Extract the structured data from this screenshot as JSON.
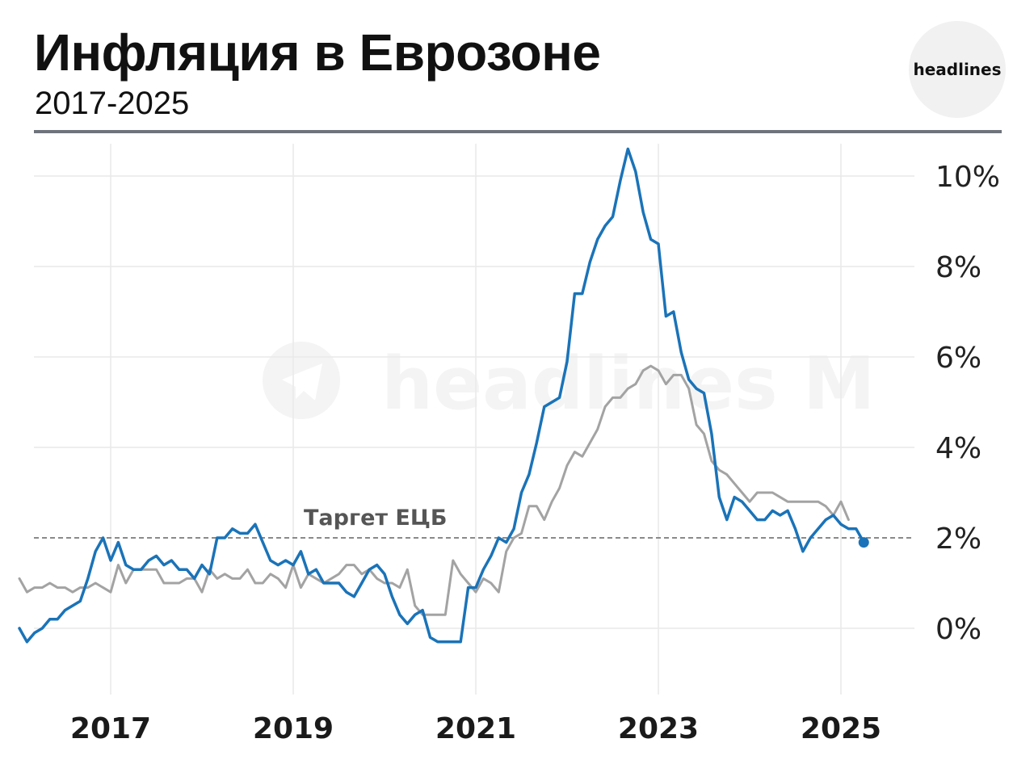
{
  "header": {
    "title": "Инфляция в Еврозоне",
    "subtitle": "2017-2025",
    "logo_text": "headlines"
  },
  "watermark": {
    "text": "headlines M"
  },
  "colors": {
    "headline": "#1a73b8",
    "core": "#a3a3a3",
    "grid": "#e9e9e9",
    "target": "#8a8a8a"
  },
  "chart_data": {
    "type": "line",
    "title": "Инфляция в Еврозоне",
    "subtitle": "2017-2025",
    "x_start": "2016-01",
    "x_end": "2025-05",
    "xlim": [
      "2016-01",
      "2025-12"
    ],
    "ylim": [
      -1.4,
      10.6
    ],
    "y_ticks": [
      0,
      2,
      4,
      6,
      8,
      10
    ],
    "y_tick_labels": [
      "0%",
      "2%",
      "4%",
      "6%",
      "8%",
      "10%"
    ],
    "x_ticks": [
      "2017-01",
      "2019-01",
      "2021-01",
      "2023-01",
      "2025-01"
    ],
    "x_tick_labels": [
      "2017",
      "2019",
      "2021",
      "2023",
      "2025"
    ],
    "grid": true,
    "reference_line": {
      "label": "Таргет ЕЦБ",
      "y": 2
    },
    "series": [
      {
        "values": [
          0.0,
          -0.3,
          -0.1,
          0.0,
          0.2,
          0.2,
          0.4,
          0.5,
          0.6,
          1.1,
          1.7,
          2.0,
          1.5,
          1.9,
          1.4,
          1.3,
          1.3,
          1.5,
          1.6,
          1.4,
          1.5,
          1.3,
          1.3,
          1.1,
          1.4,
          1.2,
          2.0,
          2.0,
          2.2,
          2.1,
          2.1,
          2.3,
          1.9,
          1.5,
          1.4,
          1.5,
          1.4,
          1.7,
          1.2,
          1.3,
          1.0,
          1.0,
          1.0,
          0.8,
          0.7,
          1.0,
          1.3,
          1.4,
          1.2,
          0.7,
          0.3,
          0.1,
          0.3,
          0.4,
          -0.2,
          -0.3,
          -0.3,
          -0.3,
          -0.3,
          0.9,
          0.9,
          1.3,
          1.6,
          2.0,
          1.9,
          2.2,
          3.0,
          3.4,
          4.1,
          4.9,
          5.0,
          5.1,
          5.9,
          7.4,
          7.4,
          8.1,
          8.6,
          8.9,
          9.1,
          9.9,
          10.6,
          10.1,
          9.2,
          8.6,
          8.5,
          6.9,
          7.0,
          6.1,
          5.5,
          5.3,
          5.2,
          4.3,
          2.9,
          2.4,
          2.9,
          2.8,
          2.6,
          2.4,
          2.4,
          2.6,
          2.5,
          2.6,
          2.2,
          1.7,
          2.0,
          2.2,
          2.4,
          2.5,
          2.3,
          2.2,
          2.2,
          1.9
        ]
      },
      {
        "values": [
          1.1,
          0.8,
          0.9,
          0.9,
          1.0,
          0.9,
          0.9,
          0.8,
          0.9,
          0.9,
          1.0,
          0.9,
          0.8,
          1.4,
          1.0,
          1.3,
          1.3,
          1.3,
          1.3,
          1.0,
          1.0,
          1.0,
          1.1,
          1.1,
          0.8,
          1.3,
          1.1,
          1.2,
          1.1,
          1.1,
          1.3,
          1.0,
          1.0,
          1.2,
          1.1,
          0.9,
          1.4,
          0.9,
          1.2,
          1.1,
          1.0,
          1.1,
          1.2,
          1.4,
          1.4,
          1.2,
          1.3,
          1.1,
          1.0,
          1.0,
          0.9,
          1.3,
          0.5,
          0.3,
          0.3,
          0.3,
          0.3,
          1.5,
          1.2,
          1.0,
          0.8,
          1.1,
          1.0,
          0.8,
          1.7,
          2.0,
          2.1,
          2.7,
          2.7,
          2.4,
          2.8,
          3.1,
          3.6,
          3.9,
          3.8,
          4.1,
          4.4,
          4.9,
          5.1,
          5.1,
          5.3,
          5.4,
          5.7,
          5.8,
          5.7,
          5.4,
          5.6,
          5.6,
          5.3,
          4.5,
          4.3,
          3.7,
          3.5,
          3.4,
          3.2,
          3.0,
          2.8,
          3.0,
          3.0,
          3.0,
          2.9,
          2.8,
          2.8,
          2.8,
          2.8,
          2.8,
          2.7,
          2.5,
          2.8,
          2.4
        ]
      }
    ]
  }
}
